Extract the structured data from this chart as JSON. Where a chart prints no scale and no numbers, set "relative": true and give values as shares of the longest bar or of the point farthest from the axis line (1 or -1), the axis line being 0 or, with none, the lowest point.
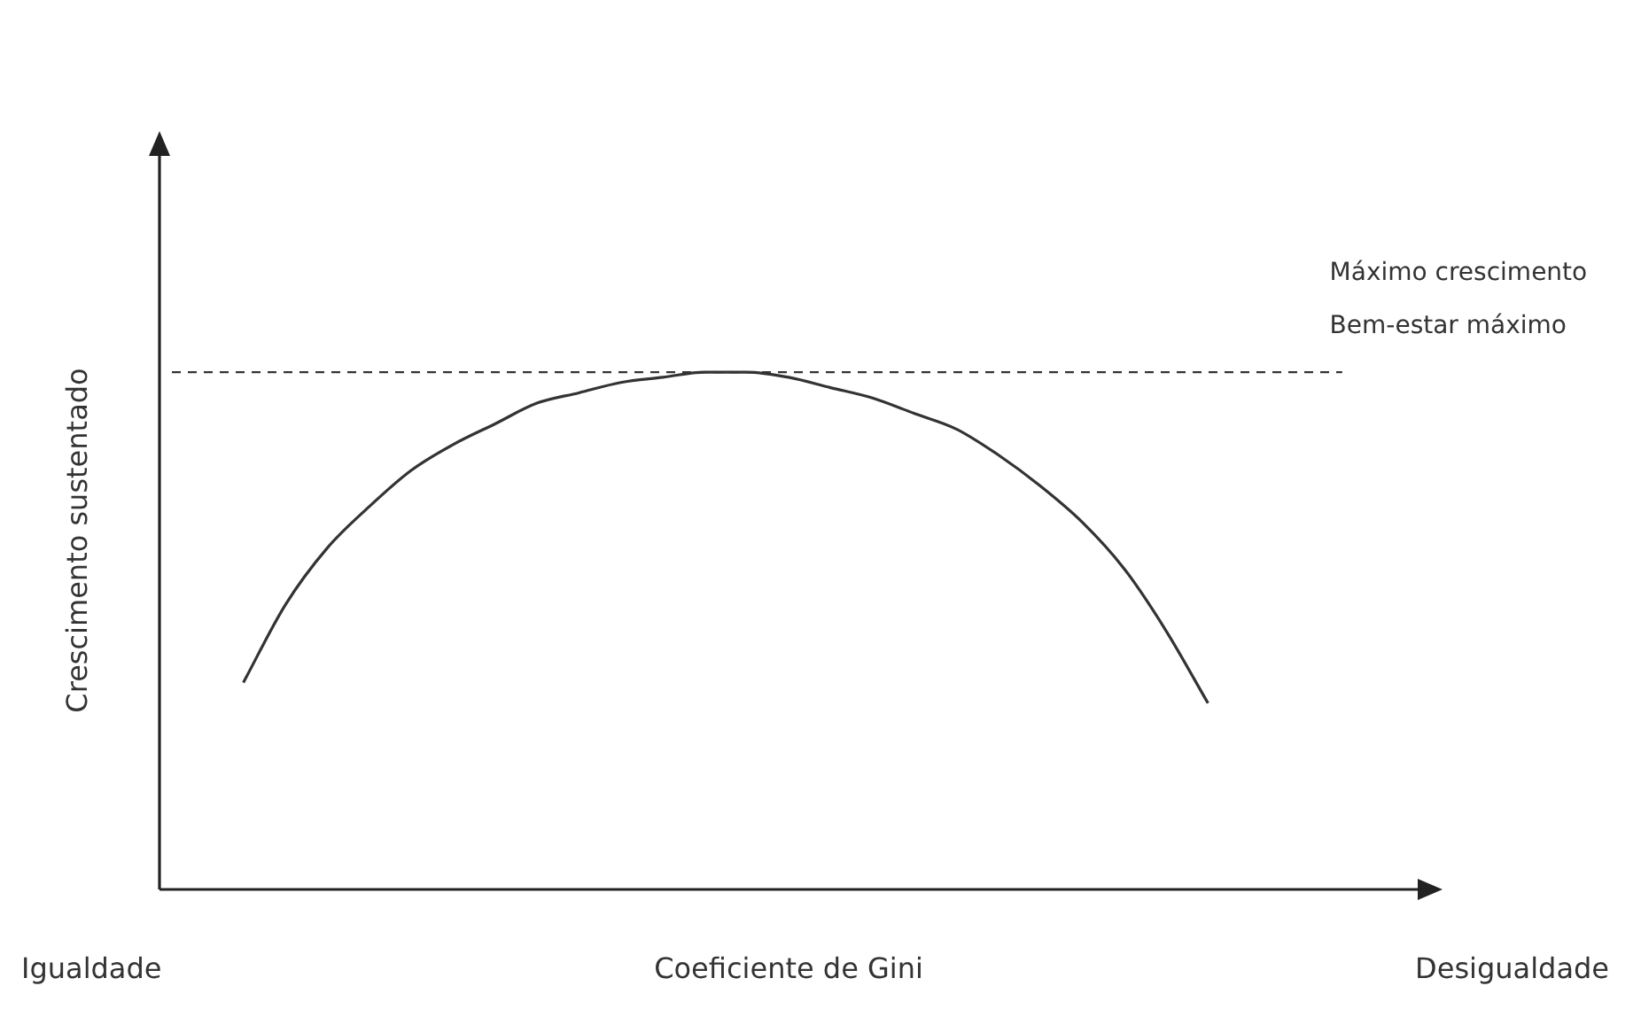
{
  "chart_data": {
    "type": "line",
    "xlabel": "Coeficiente de Gini",
    "ylabel": "Crescimento sustentado",
    "relative": true,
    "color": "#333333",
    "marker": "none",
    "categories": [
      null,
      null,
      null,
      null,
      null,
      null,
      null,
      null,
      null,
      null,
      null,
      null,
      null,
      null,
      null,
      null,
      null,
      null,
      null,
      null,
      null,
      null,
      null,
      null,
      null,
      null,
      null,
      null,
      null,
      null,
      null
    ],
    "values": [
      null,
      null,
      0.4,
      0.55,
      0.66,
      0.74,
      0.81,
      0.86,
      0.9,
      0.94,
      0.96,
      0.98,
      0.99,
      1.0,
      1.0,
      0.99,
      0.97,
      0.95,
      0.92,
      0.89,
      0.84,
      0.78,
      0.71,
      0.62,
      0.5,
      0.36,
      null,
      null,
      null,
      null,
      null
    ],
    "ref_lines": [
      {
        "axis": "y",
        "value": 1,
        "label": "Máximo crescimento\nBem-estar máximo",
        "line_style": "dashed",
        "color": "#333333"
      }
    ],
    "annotations": [
      "Igualdade",
      "Desigualdade"
    ]
  }
}
